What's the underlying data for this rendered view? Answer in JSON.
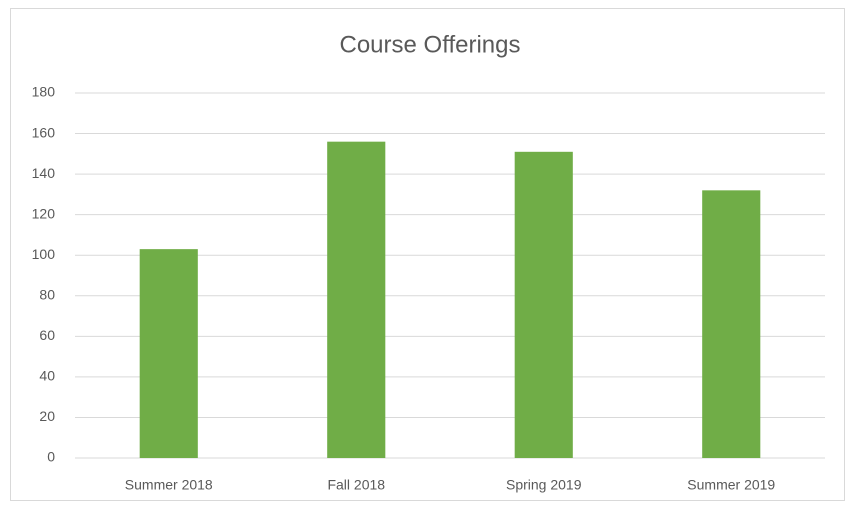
{
  "chart_data": {
    "type": "bar",
    "title": "Course Offerings",
    "categories": [
      "Summer 2018",
      "Fall 2018",
      "Spring 2019",
      "Summer 2019"
    ],
    "values": [
      103,
      156,
      151,
      132
    ],
    "color": "#70ad47",
    "ylim": [
      0,
      180
    ],
    "yticks": [
      0,
      20,
      40,
      60,
      80,
      100,
      120,
      140,
      160,
      180
    ],
    "grid": true
  }
}
